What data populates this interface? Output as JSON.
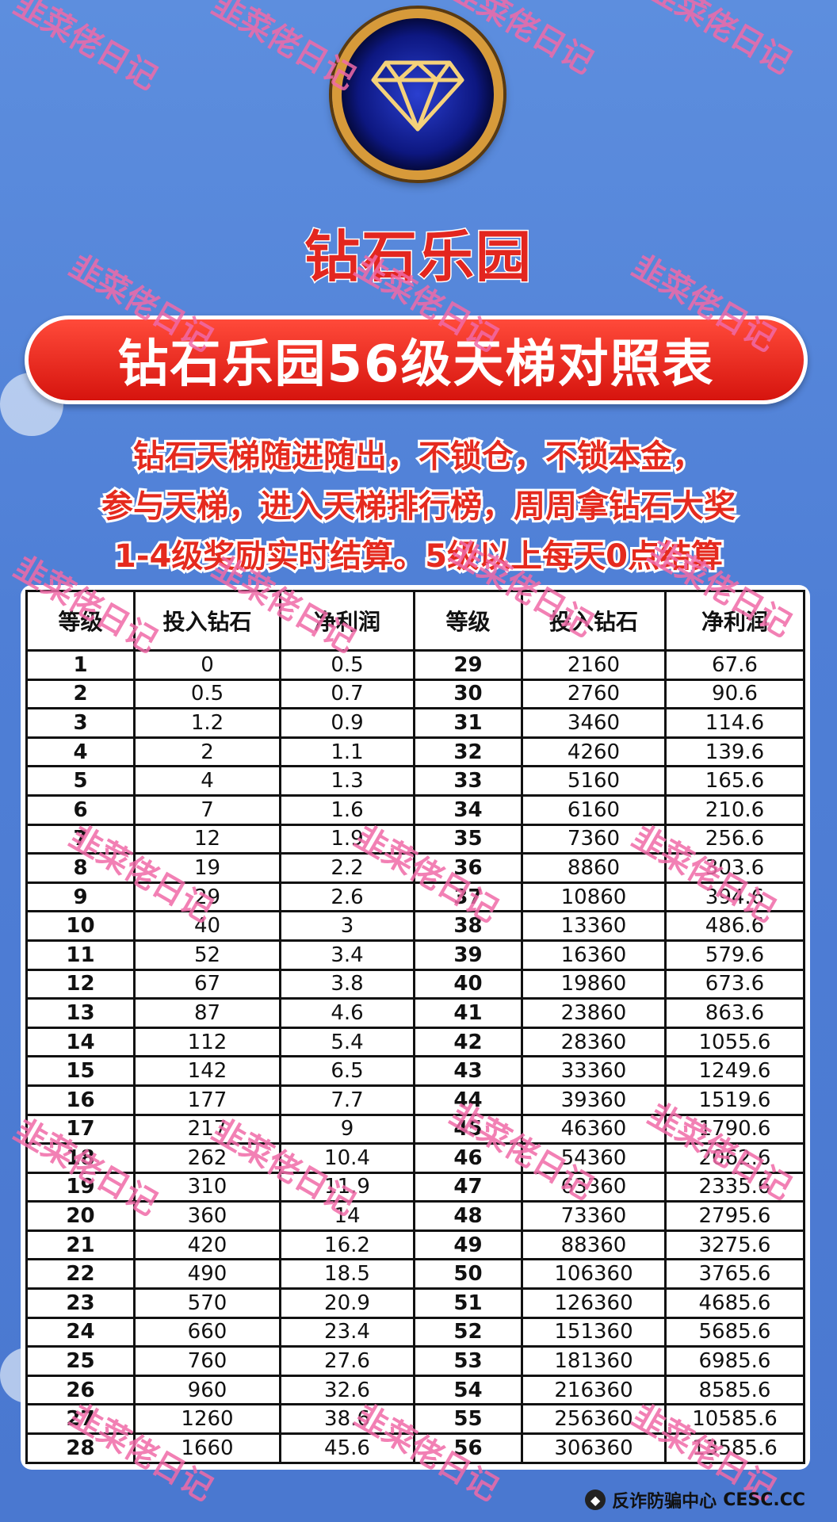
{
  "brand": "钻石乐园",
  "banner_title": "钻石乐园56级天梯对照表",
  "intro_lines": [
    "钻石天梯随进随出，不锁仓，不锁本金，",
    "参与天梯，进入天梯排行榜，周周拿钻石大奖",
    "1-4级奖励实时结算。5级以上每天0点结算"
  ],
  "table": {
    "headers": [
      "等级",
      "投入钻石",
      "净利润",
      "等级",
      "投入钻石",
      "净利润"
    ],
    "rows": [
      [
        "1",
        "0",
        "0.5",
        "29",
        "2160",
        "67.6"
      ],
      [
        "2",
        "0.5",
        "0.7",
        "30",
        "2760",
        "90.6"
      ],
      [
        "3",
        "1.2",
        "0.9",
        "31",
        "3460",
        "114.6"
      ],
      [
        "4",
        "2",
        "1.1",
        "32",
        "4260",
        "139.6"
      ],
      [
        "5",
        "4",
        "1.3",
        "33",
        "5160",
        "165.6"
      ],
      [
        "6",
        "7",
        "1.6",
        "34",
        "6160",
        "210.6"
      ],
      [
        "7",
        "12",
        "1.9",
        "35",
        "7360",
        "256.6"
      ],
      [
        "8",
        "19",
        "2.2",
        "36",
        "8860",
        "303.6"
      ],
      [
        "9",
        "29",
        "2.6",
        "37",
        "10860",
        "394.6"
      ],
      [
        "10",
        "40",
        "3",
        "38",
        "13360",
        "486.6"
      ],
      [
        "11",
        "52",
        "3.4",
        "39",
        "16360",
        "579.6"
      ],
      [
        "12",
        "67",
        "3.8",
        "40",
        "19860",
        "673.6"
      ],
      [
        "13",
        "87",
        "4.6",
        "41",
        "23860",
        "863.6"
      ],
      [
        "14",
        "112",
        "5.4",
        "42",
        "28360",
        "1055.6"
      ],
      [
        "15",
        "142",
        "6.5",
        "43",
        "33360",
        "1249.6"
      ],
      [
        "16",
        "177",
        "7.7",
        "44",
        "39360",
        "1519.6"
      ],
      [
        "17",
        "217",
        "9",
        "45",
        "46360",
        "1790.6"
      ],
      [
        "18",
        "262",
        "10.4",
        "46",
        "54360",
        "2062.6"
      ],
      [
        "19",
        "310",
        "11.9",
        "47",
        "63360",
        "2335.6"
      ],
      [
        "20",
        "360",
        "14",
        "48",
        "73360",
        "2795.6"
      ],
      [
        "21",
        "420",
        "16.2",
        "49",
        "88360",
        "3275.6"
      ],
      [
        "22",
        "490",
        "18.5",
        "50",
        "106360",
        "3765.6"
      ],
      [
        "23",
        "570",
        "20.9",
        "51",
        "126360",
        "4685.6"
      ],
      [
        "24",
        "660",
        "23.4",
        "52",
        "151360",
        "5685.6"
      ],
      [
        "25",
        "760",
        "27.6",
        "53",
        "181360",
        "6985.6"
      ],
      [
        "26",
        "960",
        "32.6",
        "54",
        "216360",
        "8585.6"
      ],
      [
        "27",
        "1260",
        "38.6",
        "55",
        "256360",
        "10585.6"
      ],
      [
        "28",
        "1660",
        "45.6",
        "56",
        "306360",
        "13585.6"
      ]
    ]
  },
  "watermark": "韭菜佬日记",
  "footer": {
    "label": "反诈防骗中心",
    "site": "CESC.CC"
  },
  "colors": {
    "background": "#4f7fd6",
    "accent_red": "#e3261f",
    "watermark_pink": "#f06aa8",
    "logo_gold": "#d79a3a"
  },
  "icons": {
    "logo": "diamond-icon"
  }
}
